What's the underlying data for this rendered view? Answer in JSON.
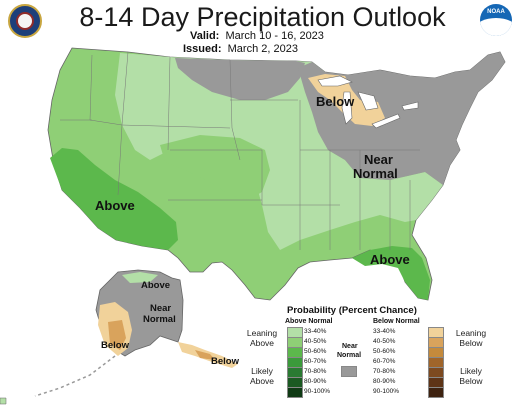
{
  "title": "8-14 Day Precipitation Outlook",
  "valid_label": "Valid:",
  "valid_value": "March 10 - 16, 2023",
  "issued_label": "Issued:",
  "issued_value": "March 2, 2023",
  "logos": {
    "left": {
      "name": "Department of Commerce seal"
    },
    "right": {
      "name": "NOAA",
      "text": "NOAA"
    }
  },
  "map_labels": {
    "above_west": "Above",
    "above_southeast": "Above",
    "below_great_lakes": "Below",
    "near_normal_east_1": "Near",
    "near_normal_east_2": "Normal",
    "alaska_above": "Above",
    "alaska_near_1": "Near",
    "alaska_near_2": "Normal",
    "alaska_below_west": "Below",
    "alaska_below_panhandle": "Below"
  },
  "legend": {
    "title": "Probability (Percent Chance)",
    "above_header": "Above Normal",
    "below_header": "Below Normal",
    "near_header_1": "Near",
    "near_header_2": "Normal",
    "leaning_above_1": "Leaning",
    "leaning_above_2": "Above",
    "likely_above_1": "Likely",
    "likely_above_2": "Above",
    "leaning_below_1": "Leaning",
    "leaning_below_2": "Below",
    "likely_below_1": "Likely",
    "likely_below_2": "Below",
    "ranges": [
      "33-40%",
      "40-50%",
      "50-60%",
      "60-70%",
      "70-80%",
      "80-90%",
      "90-100%"
    ],
    "above_colors": [
      "#b3dfa7",
      "#8fcf76",
      "#5cb84c",
      "#3b9a3b",
      "#2a7a32",
      "#1b5a22",
      "#0f3a14"
    ],
    "below_colors": [
      "#f1d29a",
      "#d9a35c",
      "#c48a3c",
      "#a0652a",
      "#7d4a20",
      "#5e3417",
      "#3e2210"
    ],
    "near_color": "#999999"
  },
  "colors": {
    "leaning_above": "#b3dfa7",
    "above_40_50": "#8fcf76",
    "above_50_60": "#5cb84c",
    "leaning_below": "#f1d29a",
    "below_40_50": "#d9a35c",
    "near_normal": "#999999"
  }
}
